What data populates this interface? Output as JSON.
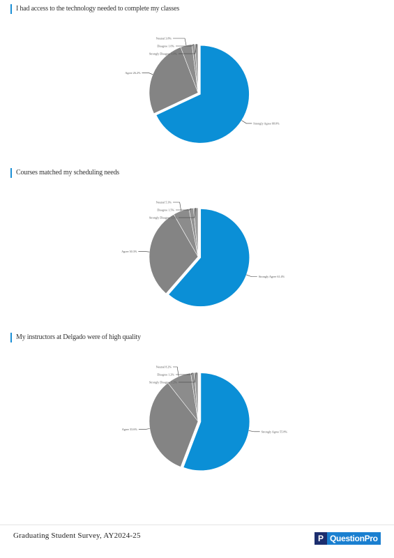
{
  "chart_data": [
    {
      "type": "pie",
      "title": "I had access to the technology needed to complete my classes",
      "series": [
        {
          "name": "Strongly Agree",
          "value": 68.0,
          "label": "Strongly Agree 68.0%",
          "color": "#0b8fd6",
          "exploded": true
        },
        {
          "name": "Agree",
          "value": 26.2,
          "label": "Agree 26.2%",
          "color": "#848484",
          "exploded": false
        },
        {
          "name": "Neutral",
          "value": 3.8,
          "label": "Neutral 3.8%",
          "color": "#8c8c8c",
          "exploded": false
        },
        {
          "name": "Disagree",
          "value": 1.0,
          "label": "Disagree 1.0%",
          "color": "#939393",
          "exploded": false
        },
        {
          "name": "Strongly Disagree",
          "value": 1.0,
          "label": "Strongly Disagree 1.0%",
          "color": "#9a9a9a",
          "exploded": false
        }
      ]
    },
    {
      "type": "pie",
      "title": "Courses matched my scheduling needs",
      "series": [
        {
          "name": "Strongly Agree",
          "value": 61.4,
          "label": "Strongly Agree 61.4%",
          "color": "#0b8fd6",
          "exploded": true
        },
        {
          "name": "Agree",
          "value": 30.3,
          "label": "Agree 30.3%",
          "color": "#848484",
          "exploded": false
        },
        {
          "name": "Neutral",
          "value": 5.3,
          "label": "Neutral 5.3%",
          "color": "#8c8c8c",
          "exploded": false
        },
        {
          "name": "Disagree",
          "value": 1.5,
          "label": "Disagree 1.5%",
          "color": "#939393",
          "exploded": false
        },
        {
          "name": "Strongly Disagree",
          "value": 1.5,
          "label": "Strongly Disagree 1.5%",
          "color": "#9a9a9a",
          "exploded": false
        }
      ]
    },
    {
      "type": "pie",
      "title": "My instructors at Delgado were of high quality",
      "series": [
        {
          "name": "Strongly Agree",
          "value": 55.8,
          "label": "Strongly Agree 55.8%",
          "color": "#0b8fd6",
          "exploded": true
        },
        {
          "name": "Agree",
          "value": 33.6,
          "label": "Agree 33.6%",
          "color": "#848484",
          "exploded": false
        },
        {
          "name": "Neutral",
          "value": 8.2,
          "label": "Neutral 8.2%",
          "color": "#8c8c8c",
          "exploded": false
        },
        {
          "name": "Disagree",
          "value": 1.2,
          "label": "Disagree 1.2%",
          "color": "#939393",
          "exploded": false
        },
        {
          "name": "Strongly Disagree",
          "value": 1.2,
          "label": "Strongly Disagree 1.2%",
          "color": "#9a9a9a",
          "exploded": false
        }
      ]
    }
  ],
  "footer": {
    "survey_name": "Graduating Student Survey, AY2024-25",
    "brand_letter": "P",
    "brand_name": "QuestionPro"
  }
}
